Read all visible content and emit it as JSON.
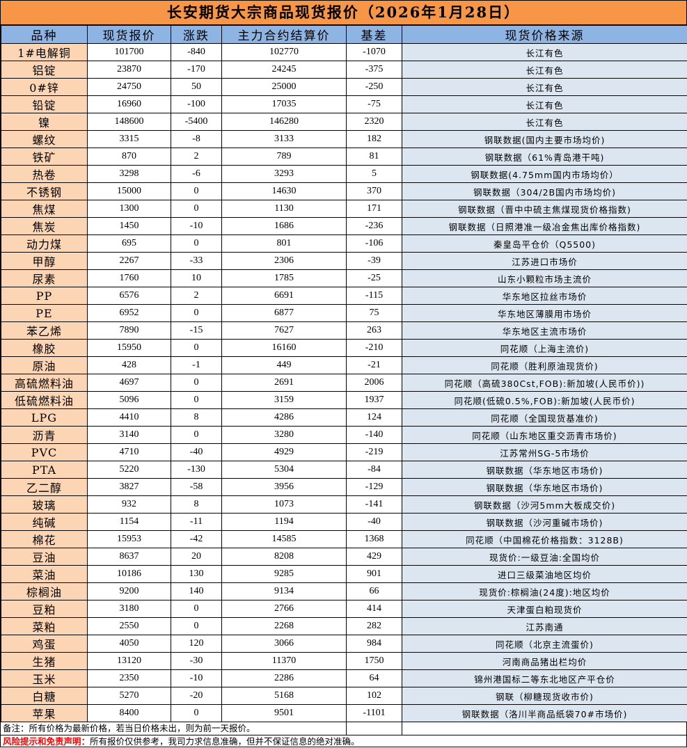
{
  "title": "长安期货大宗商品现货报价（2026年1月28日）",
  "headers": [
    "品种",
    "现货报价",
    "涨跌",
    "主力合约结算价",
    "基差",
    "现货价格来源"
  ],
  "colors": {
    "title_bg": "#F79646",
    "header_bg": "#8DB4E2",
    "name_bg": "#FCD5B4",
    "source_bg": "#DCE6F1",
    "risk_label": "#FF0000"
  },
  "rows": [
    [
      "1#电解铜",
      "101700",
      "-840",
      "102770",
      "-1070",
      "长江有色"
    ],
    [
      "铝锭",
      "23870",
      "-170",
      "24245",
      "-375",
      "长江有色"
    ],
    [
      "0#锌",
      "24750",
      "50",
      "25000",
      "-250",
      "长江有色"
    ],
    [
      "铅锭",
      "16960",
      "-100",
      "17035",
      "-75",
      "长江有色"
    ],
    [
      "镍",
      "148600",
      "-5400",
      "146280",
      "2320",
      "长江有色"
    ],
    [
      "螺纹",
      "3315",
      "-8",
      "3133",
      "182",
      "钢联数据(国内主要市场均价)"
    ],
    [
      "铁矿",
      "870",
      "2",
      "789",
      "81",
      "钢联数据（61%青岛港干吨)"
    ],
    [
      "热卷",
      "3298",
      "-6",
      "3293",
      "5",
      "钢联数据(4.75mm国内市场均价）"
    ],
    [
      "不锈钢",
      "15000",
      "0",
      "14630",
      "370",
      "钢联数据（304/2B国内市场均价)"
    ],
    [
      "焦煤",
      "1300",
      "0",
      "1130",
      "171",
      "钢联数据（晋中中硫主焦煤现货价格指数)"
    ],
    [
      "焦炭",
      "1450",
      "-10",
      "1686",
      "-236",
      "钢联数据（日照港准一级冶金焦出库价格指数)"
    ],
    [
      "动力煤",
      "695",
      "0",
      "801",
      "-106",
      "秦皇岛平仓价（Q5500)"
    ],
    [
      "甲醇",
      "2267",
      "-33",
      "2306",
      "-39",
      "江苏进口市场价"
    ],
    [
      "尿素",
      "1760",
      "10",
      "1785",
      "-25",
      "山东小颗粒市场主流价"
    ],
    [
      "PP",
      "6576",
      "2",
      "6691",
      "-115",
      "华东地区拉丝市场价"
    ],
    [
      "PE",
      "6952",
      "0",
      "6877",
      "75",
      "华东地区薄膜用市场价"
    ],
    [
      "苯乙烯",
      "7890",
      "-15",
      "7627",
      "263",
      "华东地区主流市场价"
    ],
    [
      "橡胶",
      "15950",
      "0",
      "16160",
      "-210",
      "同花顺（上海主流价)"
    ],
    [
      "原油",
      "428",
      "-1",
      "449",
      "-21",
      "同花顺（胜利原油现货价)"
    ],
    [
      "高硫燃料油",
      "4697",
      "0",
      "2691",
      "2006",
      "同花顺（高硫380Cst,FOB):新加坡(人民币价))"
    ],
    [
      "低硫燃料油",
      "5096",
      "0",
      "3159",
      "1937",
      "同花顺(低硫0.5%,FOB):新加坡(人民币价)"
    ],
    [
      "LPG",
      "4410",
      "8",
      "4286",
      "124",
      "同花顺（全国现货基准价)"
    ],
    [
      "沥青",
      "3140",
      "0",
      "3280",
      "-140",
      "同花顺（山东地区重交沥青市场价)"
    ],
    [
      "PVC",
      "4710",
      "-40",
      "4929",
      "-219",
      "江苏常州SG-5市场价"
    ],
    [
      "PTA",
      "5220",
      "-130",
      "5304",
      "-84",
      "钢联数据（华东地区市场价)"
    ],
    [
      "乙二醇",
      "3827",
      "-58",
      "3956",
      "-129",
      "钢联数据（华东地区市场价)"
    ],
    [
      "玻璃",
      "932",
      "8",
      "1073",
      "-141",
      "钢联数据（沙河5mm大板成交价)"
    ],
    [
      "纯碱",
      "1154",
      "-11",
      "1194",
      "-40",
      "钢联数据（沙河重碱市场价)"
    ],
    [
      "棉花",
      "15953",
      "-42",
      "14585",
      "1368",
      "同花顺（中国棉花价格指数：3128B)"
    ],
    [
      "豆油",
      "8637",
      "20",
      "8208",
      "429",
      "现货价:一级豆油:全国均价"
    ],
    [
      "菜油",
      "10186",
      "130",
      "9285",
      "901",
      "进口三级菜油地区均价"
    ],
    [
      "棕榈油",
      "9200",
      "140",
      "9134",
      "66",
      "现货价:棕榈油(24度):地区均价"
    ],
    [
      "豆粕",
      "3180",
      "0",
      "2766",
      "414",
      "天津蛋白粕现货价"
    ],
    [
      "菜粕",
      "2550",
      "0",
      "2268",
      "282",
      "江苏南通"
    ],
    [
      "鸡蛋",
      "4050",
      "120",
      "3066",
      "984",
      "同花顺（北京主流蛋价)"
    ],
    [
      "生猪",
      "13120",
      "-30",
      "11370",
      "1750",
      "河南商品猪出栏均价"
    ],
    [
      "玉米",
      "2350",
      "-10",
      "2286",
      "64",
      "锦州港国标二等东北地区产平仓价"
    ],
    [
      "白糖",
      "5270",
      "-20",
      "5168",
      "102",
      "钢联（柳糖现货收市价)"
    ],
    [
      "苹果",
      "8400",
      "0",
      "9501",
      "-1101",
      "钢联数据（洛川半商品纸袋70#市场价)"
    ]
  ],
  "note": "备注：所有价格为最新价格，若当日价格未出，则为前一天报价。",
  "risk": {
    "label": "风险提示和免责声明：",
    "text": "所有报价仅供参考，我司力求信息准确，但并不保证信息的绝对准确。"
  }
}
